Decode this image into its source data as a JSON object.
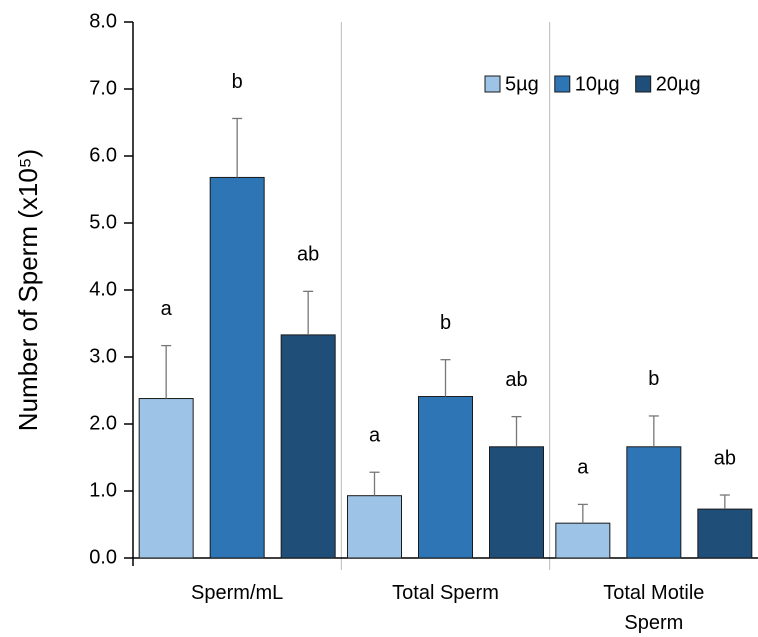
{
  "chart_data": {
    "type": "bar",
    "ylabel": "Number of Sperm (x10⁵)",
    "categories": [
      "Sperm/mL",
      "Total Sperm",
      "Total Motile Sperm"
    ],
    "series": [
      {
        "name": "5µg",
        "color": "#9dc3e6",
        "values": [
          2.38,
          0.93,
          0.52
        ],
        "errors": [
          0.79,
          0.35,
          0.28
        ],
        "letters": [
          "a",
          "a",
          "a"
        ]
      },
      {
        "name": "10µg",
        "color": "#2e75b6",
        "values": [
          5.68,
          2.41,
          1.66
        ],
        "errors": [
          0.88,
          0.55,
          0.46
        ],
        "letters": [
          "b",
          "b",
          "b"
        ]
      },
      {
        "name": "20µg",
        "color": "#1f4e79",
        "values": [
          3.33,
          1.66,
          0.73
        ],
        "errors": [
          0.65,
          0.45,
          0.21
        ],
        "letters": [
          "ab",
          "ab",
          "ab"
        ]
      }
    ],
    "ylim": [
      0,
      8
    ],
    "yticks": [
      {
        "value": 0,
        "label": "0.0"
      },
      {
        "value": 1,
        "label": "1.0"
      },
      {
        "value": 2,
        "label": "2.0"
      },
      {
        "value": 3,
        "label": "3.0"
      },
      {
        "value": 4,
        "label": "4.0"
      },
      {
        "value": 5,
        "label": "5.0"
      },
      {
        "value": 6,
        "label": "6.0"
      },
      {
        "value": 7,
        "label": "7.0"
      },
      {
        "value": 8,
        "label": "8.0"
      }
    ],
    "legend": "upper right"
  }
}
